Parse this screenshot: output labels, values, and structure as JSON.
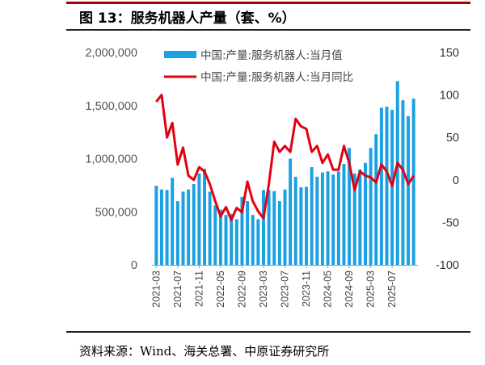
{
  "figure": {
    "title": "图 13：服务机器人产量（套、%）",
    "source": "资料来源：Wind、海关总署、中原证券研究所"
  },
  "colors": {
    "bars": "#1ba1e2",
    "line": "#e3000f",
    "frame": "#a40000"
  },
  "chart_data": {
    "type": "bar",
    "title": "",
    "legend_placement": "top",
    "grid": false,
    "y_left": {
      "ylim": [
        0,
        2000000
      ],
      "ticks": [
        "0",
        "500,000",
        "1,000,000",
        "1,500,000",
        "2,000,000"
      ]
    },
    "y_right": {
      "ylim": [
        -100,
        150
      ],
      "ticks": [
        "-100",
        "-50",
        "0",
        "50",
        "100",
        "150"
      ]
    },
    "x_tick_labels": [
      "2021-03",
      "2021-07",
      "2021-11",
      "2022-05",
      "2022-09",
      "2023-03",
      "2023-07",
      "2023-11",
      "2024-05",
      "2024-09",
      "2025-03",
      "2025-07"
    ],
    "x": [
      "2021-03",
      "2021-04",
      "2021-05",
      "2021-06",
      "2021-07",
      "2021-08",
      "2021-09",
      "2021-10",
      "2021-11",
      "2021-12",
      "2022-03",
      "2022-04",
      "2022-05",
      "2022-06",
      "2022-07",
      "2022-08",
      "2022-09",
      "2022-10",
      "2022-11",
      "2022-12",
      "2023-03",
      "2023-04",
      "2023-05",
      "2023-06",
      "2023-07",
      "2023-08",
      "2023-09",
      "2023-10",
      "2023-11",
      "2023-12",
      "2024-03",
      "2024-04",
      "2024-05",
      "2024-06",
      "2024-07",
      "2024-08",
      "2024-09",
      "2024-10",
      "2024-11",
      "2024-12",
      "2025-03",
      "2025-04",
      "2025-05",
      "2025-06",
      "2025-07",
      "2025-08",
      "2025-09",
      "2025-10",
      "2025-11"
    ],
    "series": [
      {
        "name": "中国:产量:服务机器人:当月值",
        "kind": "bar",
        "axis": "left",
        "values": [
          745000,
          710000,
          705000,
          820000,
          600000,
          690000,
          710000,
          760000,
          860000,
          905000,
          690000,
          560000,
          520000,
          470000,
          480000,
          430000,
          640000,
          600000,
          470000,
          430000,
          705000,
          705000,
          695000,
          600000,
          710000,
          1000000,
          830000,
          730000,
          735000,
          920000,
          830000,
          870000,
          880000,
          850000,
          880000,
          950000,
          1100000,
          860000,
          900000,
          960000,
          1100000,
          1230000,
          1480000,
          1490000,
          1460000,
          1730000,
          1550000,
          1400000,
          1565000
        ]
      },
      {
        "name": "中国:产量:服务机器人:当月同比",
        "kind": "line",
        "axis": "right",
        "values": [
          92,
          100,
          50,
          67,
          18,
          38,
          5,
          0,
          15,
          10,
          -5,
          -25,
          -43,
          -32,
          -47,
          -33,
          -38,
          -2,
          -25,
          -37,
          -45,
          -5,
          45,
          33,
          40,
          33,
          72,
          63,
          60,
          33,
          40,
          20,
          30,
          12,
          12,
          40,
          20,
          -12,
          10,
          5,
          3,
          -3,
          18,
          10,
          -7,
          20,
          12,
          -5,
          5
        ]
      }
    ]
  }
}
